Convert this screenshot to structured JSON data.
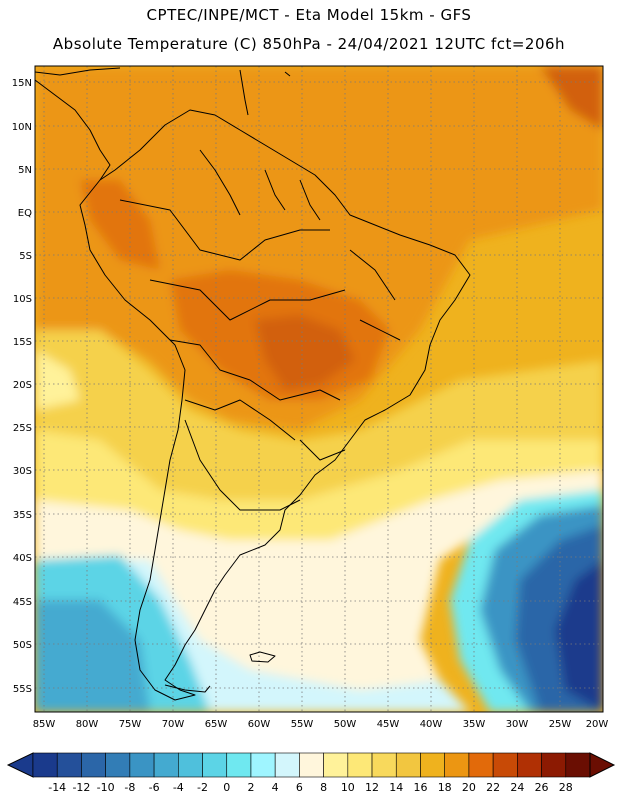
{
  "header": {
    "line1": "CPTEC/INPE/MCT -  Eta Model 15km - GFS",
    "line2": "Absolute Temperature (C) 850hPa - 24/04/2021 12UTC fct=206h"
  },
  "map": {
    "region": "South America",
    "lat_labels": [
      "15N",
      "10N",
      "5N",
      "EQ",
      "5S",
      "10S",
      "15S",
      "20S",
      "25S",
      "30S",
      "35S",
      "40S",
      "45S",
      "50S",
      "55S"
    ],
    "lon_labels": [
      "85W",
      "80W",
      "75W",
      "70W",
      "65W",
      "60W",
      "55W",
      "50W",
      "45W",
      "40W",
      "35W",
      "30W",
      "25W",
      "20W"
    ],
    "grid": "dotted",
    "field": "temperature at 850hPa, warmest (20-24C) over central Brazil, coldest (-10C to -14C) over the southern Atlantic near 50S-55S"
  },
  "colorbar": {
    "labels": [
      "-14",
      "-12",
      "-10",
      "-8",
      "-6",
      "-4",
      "-2",
      "0",
      "2",
      "4",
      "6",
      "8",
      "10",
      "12",
      "14",
      "16",
      "18",
      "20",
      "22",
      "24",
      "26",
      "28"
    ],
    "colors": [
      "#1a3a8c",
      "#24509a",
      "#2b66a8",
      "#327db6",
      "#3a94c4",
      "#44aad0",
      "#4fc0dc",
      "#5cd4e6",
      "#6fe8f0",
      "#9ff5ff",
      "#d3f6fc",
      "#fff6dc",
      "#fff29a",
      "#fde877",
      "#f8d95c",
      "#f2c640",
      "#efb21e",
      "#ec9612",
      "#e26a0a",
      "#c84a06",
      "#b03004",
      "#8c1a02",
      "#6a0e02"
    ]
  }
}
